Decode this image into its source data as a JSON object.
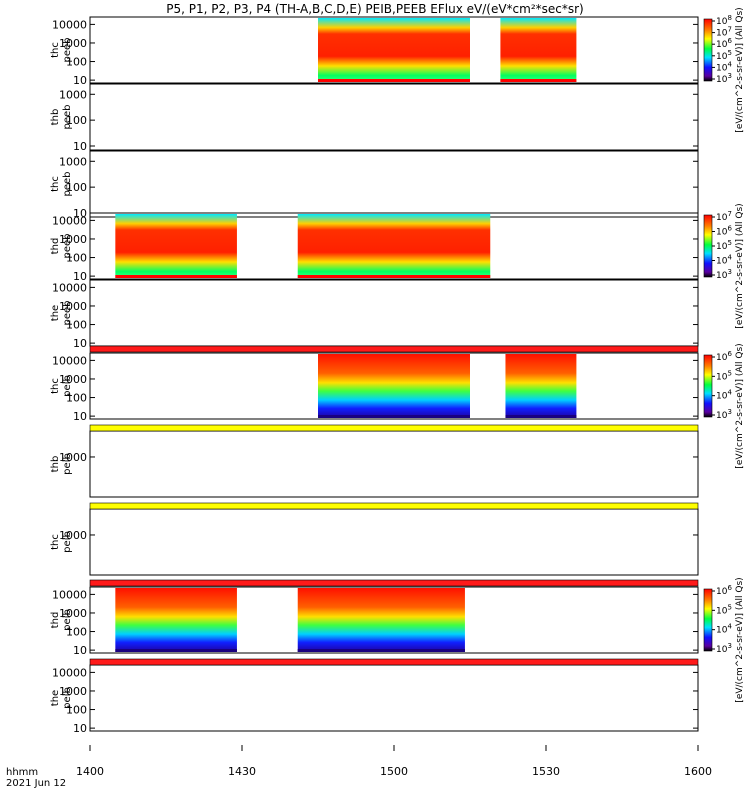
{
  "title": "P5, P1, P2, P3, P4 (TH-A,B,C,D,E) PEIB,PEEB EFlux eV/(eV*cm²*sec*sr)",
  "footer": {
    "line1": "hhmm",
    "line2": "2021 Jun 12"
  },
  "x_ticks": [
    "1400",
    "1430",
    "1500",
    "1530",
    "1600"
  ],
  "colorbar_label_short": "[eV/(cm^2-s-sr-eV)] (All Qs)",
  "chart_data": {
    "type": "heatmap",
    "xlabel": "hhmm",
    "date": "2021 Jun 12",
    "xlim": [
      "14:00",
      "16:00"
    ],
    "x_ticks": [
      "1400",
      "1430",
      "1500",
      "1530",
      "1600"
    ],
    "y_scale": "log",
    "panels": [
      {
        "probe": "thc",
        "instrument": "peeb",
        "y_ticks": [
          "10",
          "100",
          "1000",
          "10000"
        ],
        "ylim": [
          7,
          25000
        ],
        "intervals": [
          [
            "14:45",
            "15:15"
          ],
          [
            "15:21",
            "15:36"
          ]
        ],
        "colorbar_ticks": [
          "10^3",
          "10^4",
          "10^5",
          "10^6",
          "10^7",
          "10^8"
        ]
      },
      {
        "probe": "thb",
        "instrument": "peeb",
        "y_ticks": [
          "10",
          "100",
          "1000"
        ],
        "ylim": [
          7,
          2500
        ],
        "intervals": []
      },
      {
        "probe": "thc",
        "instrument": "peeb",
        "y_ticks": [
          "10",
          "100",
          "1000"
        ],
        "ylim": [
          7,
          2500
        ],
        "intervals": []
      },
      {
        "probe": "thd",
        "instrument": "peeb",
        "y_ticks": [
          "10",
          "100",
          "1000",
          "10000"
        ],
        "ylim": [
          7,
          25000
        ],
        "intervals": [
          [
            "14:05",
            "14:29"
          ],
          [
            "14:41",
            "15:19"
          ]
        ],
        "colorbar_ticks": [
          "10^3",
          "10^4",
          "10^5",
          "10^6",
          "10^7"
        ]
      },
      {
        "probe": "the",
        "instrument": "peeb",
        "y_ticks": [
          "10",
          "100",
          "1000",
          "10000"
        ],
        "ylim": [
          7,
          25000
        ],
        "intervals": []
      },
      {
        "probe": "thc",
        "instrument": "peib",
        "y_ticks": [
          "10",
          "100",
          "1000",
          "10000"
        ],
        "ylim": [
          7,
          25000
        ],
        "intervals": [
          [
            "14:45",
            "15:15"
          ],
          [
            "15:22",
            "15:36"
          ]
        ],
        "colorbar_ticks": [
          "10^3",
          "10^4",
          "10^5",
          "10^6"
        ]
      },
      {
        "probe": "thb",
        "instrument": "peib",
        "y_ticks": [
          "1000"
        ],
        "ylim": [
          7,
          25000
        ],
        "intervals": []
      },
      {
        "probe": "thc",
        "instrument": "peib",
        "y_ticks": [
          "1000"
        ],
        "ylim": [
          7,
          25000
        ],
        "intervals": []
      },
      {
        "probe": "thd",
        "instrument": "peib",
        "y_ticks": [
          "10",
          "100",
          "1000",
          "10000"
        ],
        "ylim": [
          7,
          25000
        ],
        "intervals": [
          [
            "14:05",
            "14:29"
          ],
          [
            "14:41",
            "15:14"
          ]
        ],
        "colorbar_ticks": [
          "10^3",
          "10^4",
          "10^5",
          "10^6"
        ]
      },
      {
        "probe": "the",
        "instrument": "peib",
        "y_ticks": [
          "10",
          "100",
          "1000",
          "10000"
        ],
        "ylim": [
          7,
          25000
        ],
        "intervals": []
      }
    ],
    "fill_bars": [
      {
        "after_panel": 4,
        "color": "#ff1a1a"
      },
      {
        "after_panel": 5,
        "color": "#ffff00"
      },
      {
        "after_panel": 6,
        "color": "#ffff00"
      },
      {
        "after_panel": 7,
        "color": "#ff1a1a"
      },
      {
        "after_panel": 8,
        "color": "#ff1a1a"
      }
    ]
  }
}
